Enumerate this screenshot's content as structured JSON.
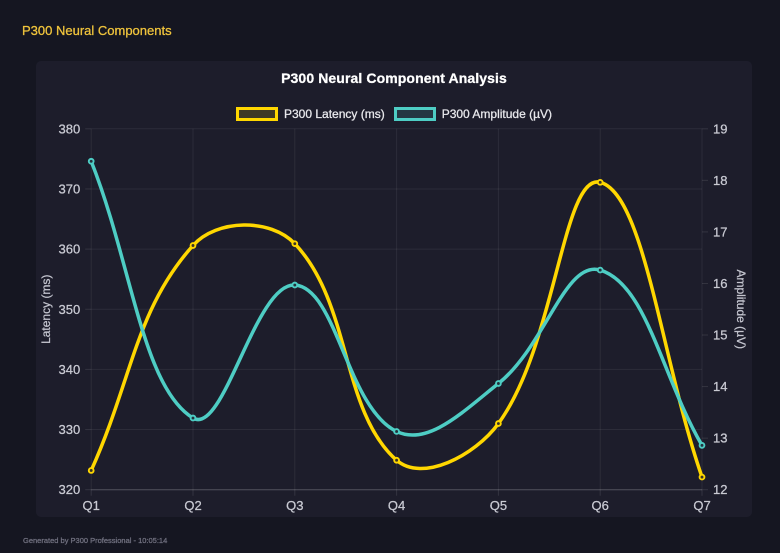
{
  "page": {
    "title": "P300 Neural Components",
    "footer": "Generated by P300 Professional - 10:05:14"
  },
  "chart_data": {
    "type": "line",
    "title": "P300 Neural Component Analysis",
    "categories": [
      "Q1",
      "Q2",
      "Q3",
      "Q4",
      "Q5",
      "Q6",
      "Q7"
    ],
    "series": [
      {
        "name": "P300 Latency (ms)",
        "axis": "left",
        "color": "#ffd700",
        "values": [
          323.2,
          360.6,
          360.9,
          324.9,
          331.0,
          371.1,
          322.1
        ]
      },
      {
        "name": "P300 Amplitude (µV)",
        "axis": "right",
        "color": "#4ecdc4",
        "values": [
          18.37,
          13.39,
          15.97,
          13.13,
          14.06,
          16.26,
          12.86
        ]
      }
    ],
    "left_axis": {
      "label": "Latency (ms)",
      "min": 320,
      "max": 380,
      "tick_step": 10
    },
    "right_axis": {
      "label": "Amplitude (µV)",
      "min": 12,
      "max": 19,
      "tick_step": 1
    },
    "grid": true,
    "legend_position": "top",
    "line_tension": 0.4
  }
}
